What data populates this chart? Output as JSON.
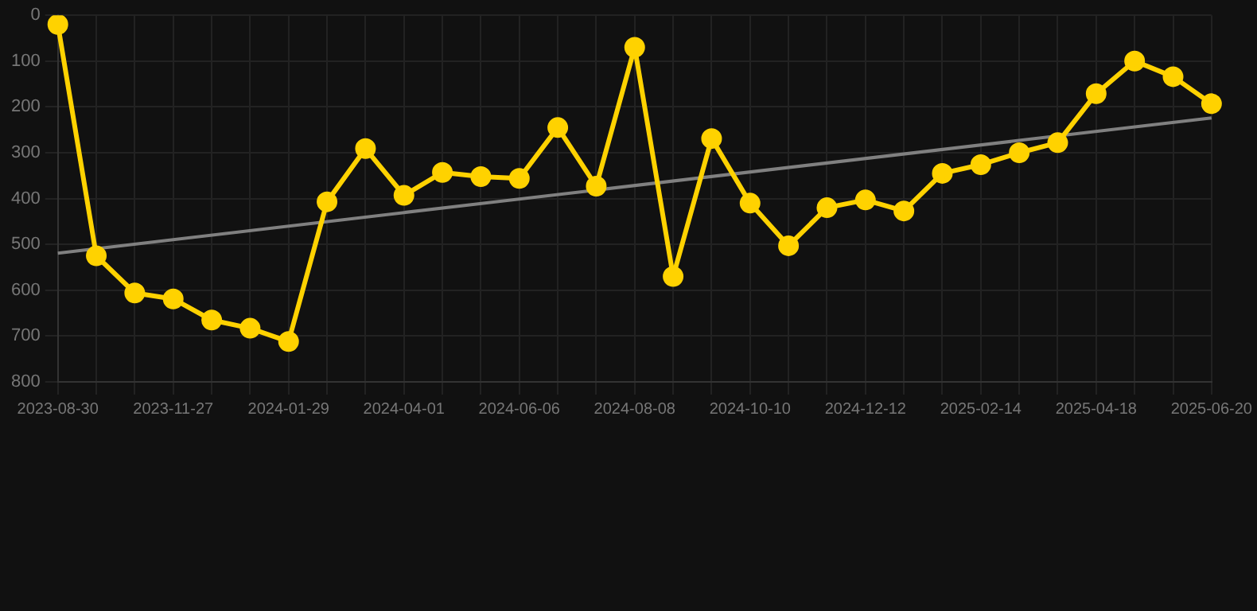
{
  "chart_data": {
    "type": "line",
    "categories": [
      "2023-08-30",
      null,
      null,
      "2023-11-27",
      null,
      null,
      "2024-01-29",
      null,
      null,
      "2024-04-01",
      null,
      null,
      "2024-06-06",
      null,
      null,
      "2024-08-08",
      null,
      null,
      "2024-10-10",
      null,
      null,
      "2024-12-12",
      null,
      null,
      "2025-02-14",
      null,
      null,
      "2025-04-18",
      null,
      null,
      "2025-06-20"
    ],
    "series": [
      {
        "color": "#ffd200",
        "marker": "circle",
        "values": [
          20,
          525,
          606,
          619,
          665,
          683,
          712,
          407,
          291,
          393,
          343,
          352,
          356,
          245,
          373,
          70,
          570,
          269,
          410,
          503,
          420,
          403,
          427,
          345,
          326,
          300,
          278,
          171,
          100,
          134,
          193
        ]
      },
      {
        "color": "#808080",
        "marker": "none",
        "values": [
          519,
          null,
          null,
          null,
          null,
          null,
          null,
          null,
          null,
          null,
          null,
          null,
          null,
          null,
          null,
          null,
          null,
          null,
          null,
          null,
          null,
          null,
          null,
          null,
          null,
          null,
          null,
          null,
          null,
          null,
          224
        ]
      }
    ],
    "ylim": [
      800,
      0
    ],
    "yticks": [
      0,
      100,
      200,
      300,
      400,
      500,
      600,
      700,
      800
    ],
    "grid": true,
    "legend": false,
    "line_style": "solid"
  }
}
